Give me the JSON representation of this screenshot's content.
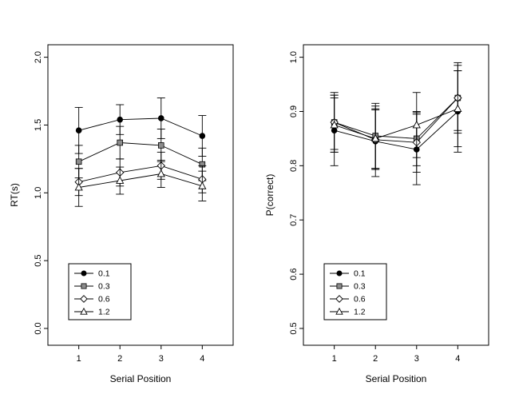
{
  "figure": {
    "background": "#ffffff",
    "foreground": "#000000",
    "gray_fill": "#8c8c8c"
  },
  "chart_data": [
    {
      "type": "line",
      "title": "",
      "xlabel": "Serial Position",
      "ylabel": "RT(s)",
      "x": [
        1,
        2,
        3,
        4
      ],
      "xtick_labels": [
        "1",
        "2",
        "3",
        "4"
      ],
      "ylim": [
        0.0,
        2.0
      ],
      "yticks": [
        0.0,
        0.5,
        1.0,
        1.5,
        2.0
      ],
      "ytick_labels": [
        "0.0",
        "0.5",
        "1.0",
        "1.5",
        "2.0"
      ],
      "grid": false,
      "error_bars": true,
      "legend_position": "bottom-left",
      "series": [
        {
          "name": "0.1",
          "marker": "filled-circle",
          "color": "#000000",
          "fill": "#000000",
          "values": [
            1.46,
            1.54,
            1.55,
            1.42
          ],
          "errors": [
            0.17,
            0.11,
            0.15,
            0.15
          ]
        },
        {
          "name": "0.3",
          "marker": "filled-square",
          "color": "#000000",
          "fill": "#8c8c8c",
          "values": [
            1.23,
            1.37,
            1.35,
            1.21
          ],
          "errors": [
            0.12,
            0.12,
            0.12,
            0.12
          ]
        },
        {
          "name": "0.6",
          "marker": "open-diamond",
          "color": "#000000",
          "fill": "#ffffff",
          "values": [
            1.08,
            1.15,
            1.2,
            1.1
          ],
          "errors": [
            0.1,
            0.1,
            0.1,
            0.1
          ]
        },
        {
          "name": "1.2",
          "marker": "open-triangle",
          "color": "#000000",
          "fill": "#ffffff",
          "values": [
            1.04,
            1.09,
            1.14,
            1.05
          ],
          "errors": [
            0.14,
            0.1,
            0.1,
            0.11
          ]
        }
      ]
    },
    {
      "type": "line",
      "title": "",
      "xlabel": "Serial Position",
      "ylabel": "P(correct)",
      "x": [
        1,
        2,
        3,
        4
      ],
      "xtick_labels": [
        "1",
        "2",
        "3",
        "4"
      ],
      "ylim": [
        0.5,
        1.0
      ],
      "yticks": [
        0.5,
        0.6,
        0.7,
        0.8,
        0.9,
        1.0
      ],
      "ytick_labels": [
        "0.5",
        "0.6",
        "0.7",
        "0.8",
        "0.9",
        "1.0"
      ],
      "grid": false,
      "error_bars": true,
      "legend_position": "bottom-left",
      "series": [
        {
          "name": "0.1",
          "marker": "filled-circle",
          "color": "#000000",
          "fill": "#000000",
          "values": [
            0.865,
            0.845,
            0.83,
            0.9
          ],
          "errors": [
            0.065,
            0.065,
            0.065,
            0.075
          ]
        },
        {
          "name": "0.3",
          "marker": "filled-square",
          "color": "#000000",
          "fill": "#8c8c8c",
          "values": [
            0.88,
            0.855,
            0.85,
            0.925
          ],
          "errors": [
            0.055,
            0.06,
            0.05,
            0.065
          ]
        },
        {
          "name": "0.6",
          "marker": "open-diamond",
          "color": "#000000",
          "fill": "#ffffff",
          "values": [
            0.88,
            0.848,
            0.843,
            0.925
          ],
          "errors": [
            0.05,
            0.055,
            0.055,
            0.06
          ]
        },
        {
          "name": "1.2",
          "marker": "open-triangle",
          "color": "#000000",
          "fill": "#ffffff",
          "values": [
            0.875,
            0.85,
            0.875,
            0.905
          ],
          "errors": [
            0.05,
            0.055,
            0.06,
            0.07
          ]
        }
      ]
    }
  ]
}
